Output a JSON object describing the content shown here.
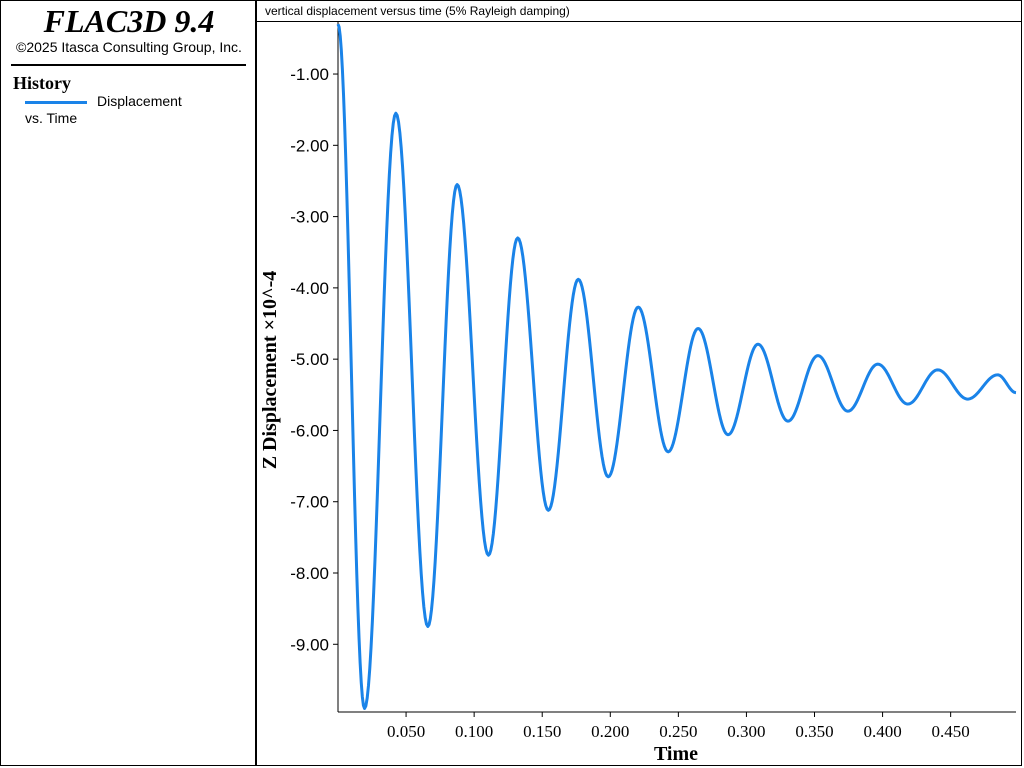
{
  "app": {
    "title": "FLAC3D 9.4",
    "copyright": "©2025 Itasca Consulting Group, Inc."
  },
  "legend": {
    "heading": "History",
    "entries": [
      {
        "line1": "Displacement",
        "line2": "vs. Time",
        "color": "#1a83e8"
      }
    ]
  },
  "chart_data": {
    "type": "line",
    "title": "vertical displacement versus time (5% Rayleigh damping)",
    "xlabel": "Time",
    "ylabel": "Z Displacement ×10^-4",
    "xlim": [
      0.0,
      0.498
    ],
    "ylim": [
      -9.95,
      -0.27
    ],
    "x_ticks": [
      0.05,
      0.1,
      0.15,
      0.2,
      0.25,
      0.3,
      0.35,
      0.4,
      0.45
    ],
    "x_tick_labels": [
      "0.050",
      "0.100",
      "0.150",
      "0.200",
      "0.250",
      "0.300",
      "0.350",
      "0.400",
      "0.450"
    ],
    "y_ticks": [
      -1,
      -2,
      -3,
      -4,
      -5,
      -6,
      -7,
      -8,
      -9
    ],
    "y_tick_labels": [
      "-1.00",
      "-2.00",
      "-3.00",
      "-4.00",
      "-5.00",
      "-6.00",
      "-7.00",
      "-8.00",
      "-9.00"
    ],
    "grid": false,
    "legend_placement": "left-panel",
    "series": [
      {
        "color": "#1a83e8",
        "turning_points": [
          [
            0.0,
            -0.3
          ],
          [
            0.0195,
            -9.9
          ],
          [
            0.0425,
            -1.55
          ],
          [
            0.066,
            -8.75
          ],
          [
            0.0875,
            -2.55
          ],
          [
            0.1105,
            -7.75
          ],
          [
            0.132,
            -3.3
          ],
          [
            0.1545,
            -7.12
          ],
          [
            0.1765,
            -3.88
          ],
          [
            0.1985,
            -6.65
          ],
          [
            0.2205,
            -4.27
          ],
          [
            0.2425,
            -6.3
          ],
          [
            0.2645,
            -4.57
          ],
          [
            0.2865,
            -6.06
          ],
          [
            0.3085,
            -4.79
          ],
          [
            0.3305,
            -5.87
          ],
          [
            0.3525,
            -4.95
          ],
          [
            0.3745,
            -5.73
          ],
          [
            0.3965,
            -5.07
          ],
          [
            0.4185,
            -5.63
          ],
          [
            0.4405,
            -5.15
          ],
          [
            0.4625,
            -5.56
          ],
          [
            0.4845,
            -5.22
          ],
          [
            0.498,
            -5.47
          ]
        ]
      }
    ]
  }
}
